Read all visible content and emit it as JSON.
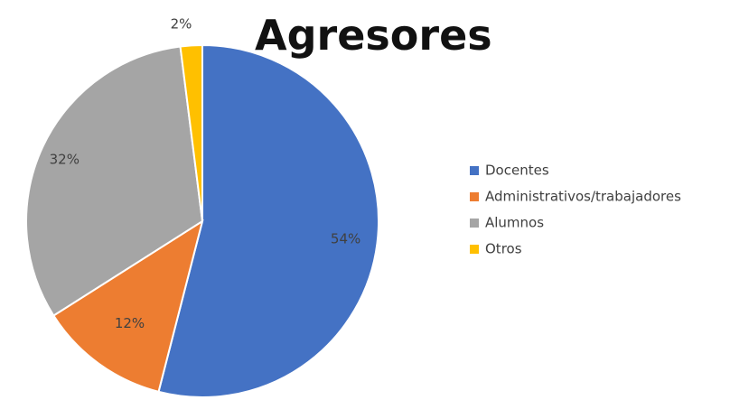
{
  "chart_data": {
    "type": "pie",
    "title": "Agresores",
    "categories": [
      "Docentes",
      "Administrativos/trabajadores",
      "Alumnos",
      "Otros"
    ],
    "values": [
      54,
      12,
      32,
      2
    ],
    "value_labels": [
      "54%",
      "12%",
      "32%",
      "2%"
    ],
    "colors": [
      "#4472C4",
      "#ED7D31",
      "#A5A5A5",
      "#FFC000"
    ],
    "start_angle": "12 o'clock",
    "direction": "clockwise",
    "legend_position": "right"
  }
}
